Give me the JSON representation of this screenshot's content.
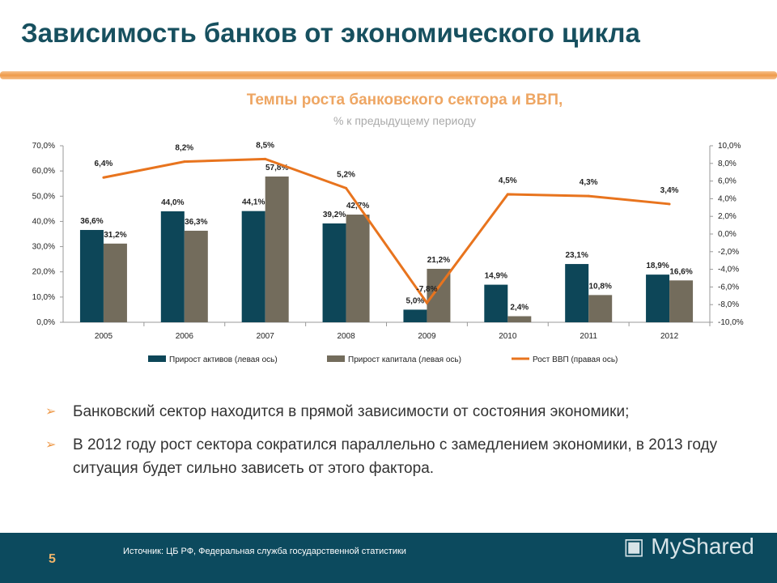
{
  "title": "Зависимость банков от экономического цикла",
  "chart_data": {
    "type": "bar",
    "title": "Темпы роста банковского сектора и ВВП,",
    "subtitle": "% к предыдущему периоду",
    "categories": [
      "2005",
      "2006",
      "2007",
      "2008",
      "2009",
      "2010",
      "2011",
      "2012"
    ],
    "left_axis": {
      "ylim": [
        0,
        70
      ],
      "ticks": [
        "0,0%",
        "10,0%",
        "20,0%",
        "30,0%",
        "40,0%",
        "50,0%",
        "60,0%",
        "70,0%"
      ]
    },
    "right_axis": {
      "ylim": [
        -10,
        10
      ],
      "ticks": [
        "-10,0%",
        "-8,0%",
        "-6,0%",
        "-4,0%",
        "-2,0%",
        "0,0%",
        "2,0%",
        "4,0%",
        "6,0%",
        "8,0%",
        "10,0%"
      ]
    },
    "series": [
      {
        "name": "Прирост активов (левая ось)",
        "type": "bar",
        "axis": "left",
        "color": "#0d4658",
        "values": [
          36.6,
          44.0,
          44.1,
          39.2,
          5.0,
          14.9,
          23.1,
          18.9
        ],
        "labels": [
          "36,6%",
          "44,0%",
          "44,1%",
          "39,2%",
          "5,0%",
          "14,9%",
          "23,1%",
          "18,9%"
        ]
      },
      {
        "name": "Прирост капитала (левая ось)",
        "type": "bar",
        "axis": "left",
        "color": "#736c5c",
        "values": [
          31.2,
          36.3,
          57.8,
          42.7,
          21.2,
          2.4,
          10.8,
          16.6
        ],
        "labels": [
          "31,2%",
          "36,3%",
          "57,8%",
          "42,7%",
          "21,2%",
          "2,4%",
          "10,8%",
          "16,6%"
        ]
      },
      {
        "name": "Рост ВВП (правая ось)",
        "type": "line",
        "axis": "right",
        "color": "#e8741e",
        "values": [
          6.4,
          8.2,
          8.5,
          5.2,
          -7.8,
          4.5,
          4.3,
          3.4
        ],
        "labels": [
          "6,4%",
          "8,2%",
          "8,5%",
          "5,2%",
          "-7,8%",
          "4,5%",
          "4,3%",
          "3,4%"
        ]
      }
    ],
    "legend": "bottom",
    "grid": false
  },
  "bullets": [
    "Банковский сектор находится в прямой зависимости от состояния экономики;",
    "В 2012 году рост сектора сократился параллельно с замедлением экономики, в 2013 году ситуация будет сильно зависеть от этого фактора."
  ],
  "footer": {
    "page": "5",
    "source": "Источник: ЦБ РФ, Федеральная служба государственной статистики",
    "logo": "MyShared"
  }
}
